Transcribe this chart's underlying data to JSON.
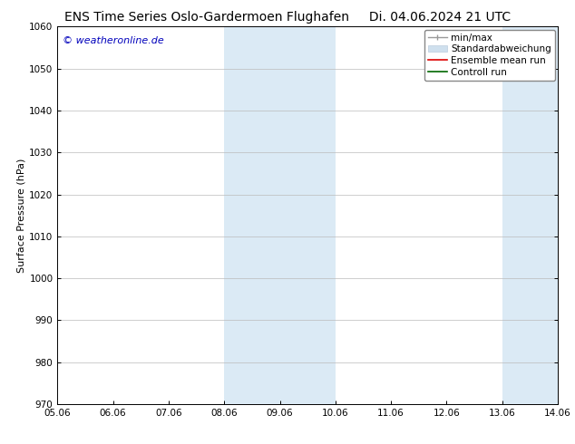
{
  "title_left": "ENS Time Series Oslo-Gardermoen Flughafen",
  "title_right": "Di. 04.06.2024 21 UTC",
  "ylabel": "Surface Pressure (hPa)",
  "ylim": [
    970,
    1060
  ],
  "yticks": [
    970,
    980,
    990,
    1000,
    1010,
    1020,
    1030,
    1040,
    1050,
    1060
  ],
  "xtick_labels": [
    "05.06",
    "06.06",
    "07.06",
    "08.06",
    "09.06",
    "10.06",
    "11.06",
    "12.06",
    "13.06",
    "14.06"
  ],
  "xlim": [
    0,
    9
  ],
  "watermark": "© weatheronline.de",
  "watermark_color": "#0000bb",
  "background_color": "#ffffff",
  "plot_bg_color": "#ffffff",
  "shaded_regions": [
    {
      "xmin": 3.0,
      "xmax": 5.0,
      "color": "#dbeaf5"
    },
    {
      "xmin": 8.0,
      "xmax": 9.0,
      "color": "#dbeaf5"
    }
  ],
  "legend_items": [
    {
      "label": "min/max",
      "color": "#aaaaaa",
      "style": "minmax"
    },
    {
      "label": "Standardabweichung",
      "color": "#cfe0ee",
      "style": "band"
    },
    {
      "label": "Ensemble mean run",
      "color": "#dd0000",
      "style": "line"
    },
    {
      "label": "Controll run",
      "color": "#006600",
      "style": "line"
    }
  ],
  "grid_color": "#bbbbbb",
  "title_fontsize": 10,
  "axis_label_fontsize": 8,
  "tick_fontsize": 7.5,
  "legend_fontsize": 7.5
}
